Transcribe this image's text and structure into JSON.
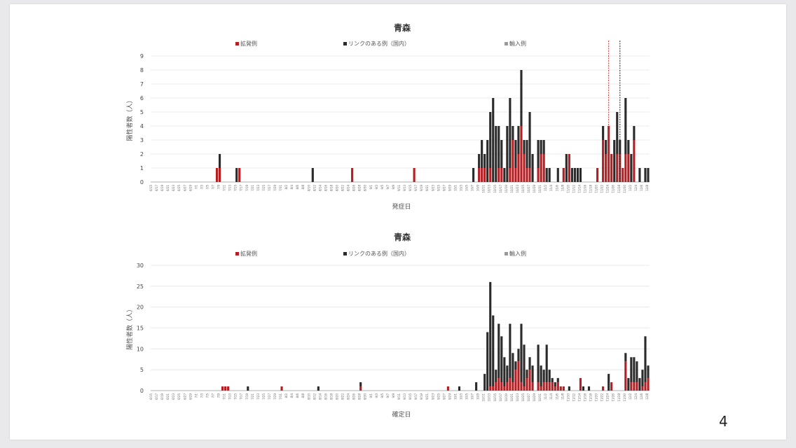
{
  "page_number": "4",
  "colors": {
    "cluster": "#b51e23",
    "linked": "#2b2b2b",
    "imported": "#9a9a9a",
    "grid": "#e4e4e4",
    "axis": "#999999"
  },
  "chart_data": [
    {
      "type": "bar",
      "stacked": true,
      "title": "青森",
      "xlabel": "発症日",
      "ylabel": "陽性者数（人）",
      "ylim": [
        0,
        9
      ],
      "yticks": [
        0,
        1,
        2,
        3,
        4,
        5,
        6,
        7,
        8,
        9
      ],
      "grid": true,
      "legend_position": "top",
      "x_start": "6/15",
      "x_end": "12/8",
      "legend": [
        "拡発例",
        "リンクのある例（国内）",
        "輸入例"
      ],
      "series": [
        {
          "name": "拡発例",
          "values": [
            {
              "x": "7/8",
              "y": 1
            },
            {
              "x": "7/9",
              "y": 1
            },
            {
              "x": "7/16",
              "y": 1
            },
            {
              "x": "8/25",
              "y": 1
            },
            {
              "x": "9/16",
              "y": 1
            },
            {
              "x": "10/9",
              "y": 1
            },
            {
              "x": "10/10",
              "y": 1
            },
            {
              "x": "10/11",
              "y": 1
            },
            {
              "x": "10/13",
              "y": 1
            },
            {
              "x": "10/16",
              "y": 1
            },
            {
              "x": "10/17",
              "y": 1
            },
            {
              "x": "10/20",
              "y": 1
            },
            {
              "x": "10/21",
              "y": 3
            },
            {
              "x": "10/22",
              "y": 1
            },
            {
              "x": "10/23",
              "y": 2
            },
            {
              "x": "10/24",
              "y": 4
            },
            {
              "x": "10/25",
              "y": 2
            },
            {
              "x": "10/26",
              "y": 1
            },
            {
              "x": "10/27",
              "y": 1
            },
            {
              "x": "10/30",
              "y": 1
            },
            {
              "x": "10/31",
              "y": 2
            },
            {
              "x": "11/1",
              "y": 2
            },
            {
              "x": "11/8",
              "y": 1
            },
            {
              "x": "11/10",
              "y": 2
            },
            {
              "x": "11/20",
              "y": 1
            },
            {
              "x": "11/22",
              "y": 3
            },
            {
              "x": "11/23",
              "y": 2
            },
            {
              "x": "11/24",
              "y": 4
            },
            {
              "x": "11/25",
              "y": 2
            },
            {
              "x": "11/27",
              "y": 2
            },
            {
              "x": "11/28",
              "y": 2
            },
            {
              "x": "11/29",
              "y": 1
            },
            {
              "x": "11/30",
              "y": 2
            },
            {
              "x": "12/1",
              "y": 2
            },
            {
              "x": "12/3",
              "y": 3
            }
          ]
        },
        {
          "name": "リンクのある例（国内）",
          "values": [
            {
              "x": "7/9",
              "y": 1
            },
            {
              "x": "7/15",
              "y": 1
            },
            {
              "x": "8/11",
              "y": 1
            },
            {
              "x": "10/7",
              "y": 1
            },
            {
              "x": "10/9",
              "y": 1
            },
            {
              "x": "10/10",
              "y": 2
            },
            {
              "x": "10/11",
              "y": 1
            },
            {
              "x": "10/12",
              "y": 3
            },
            {
              "x": "10/13",
              "y": 4
            },
            {
              "x": "10/14",
              "y": 6
            },
            {
              "x": "10/15",
              "y": 4
            },
            {
              "x": "10/16",
              "y": 3
            },
            {
              "x": "10/17",
              "y": 2
            },
            {
              "x": "10/18",
              "y": 1
            },
            {
              "x": "10/19",
              "y": 4
            },
            {
              "x": "10/20",
              "y": 5
            },
            {
              "x": "10/21",
              "y": 1
            },
            {
              "x": "10/22",
              "y": 2
            },
            {
              "x": "10/23",
              "y": 2
            },
            {
              "x": "10/24",
              "y": 4
            },
            {
              "x": "10/25",
              "y": 1
            },
            {
              "x": "10/26",
              "y": 2
            },
            {
              "x": "10/27",
              "y": 4
            },
            {
              "x": "10/28",
              "y": 2
            },
            {
              "x": "10/30",
              "y": 2
            },
            {
              "x": "10/31",
              "y": 1
            },
            {
              "x": "11/1",
              "y": 1
            },
            {
              "x": "11/2",
              "y": 1
            },
            {
              "x": "11/3",
              "y": 1
            },
            {
              "x": "11/6",
              "y": 1
            },
            {
              "x": "11/9",
              "y": 2
            },
            {
              "x": "11/11",
              "y": 1
            },
            {
              "x": "11/12",
              "y": 1
            },
            {
              "x": "11/13",
              "y": 1
            },
            {
              "x": "11/14",
              "y": 1
            },
            {
              "x": "11/22",
              "y": 1
            },
            {
              "x": "11/23",
              "y": 1
            },
            {
              "x": "11/26",
              "y": 3
            },
            {
              "x": "11/27",
              "y": 3
            },
            {
              "x": "11/28",
              "y": 1
            },
            {
              "x": "11/30",
              "y": 4
            },
            {
              "x": "12/1",
              "y": 1
            },
            {
              "x": "12/2",
              "y": 2
            },
            {
              "x": "12/3",
              "y": 1
            },
            {
              "x": "12/5",
              "y": 1
            },
            {
              "x": "12/7",
              "y": 1
            },
            {
              "x": "12/8",
              "y": 1
            }
          ]
        },
        {
          "name": "輸入例",
          "values": []
        }
      ],
      "annotations": [
        {
          "x": "11/24",
          "style": "dashed",
          "color": "#d03030"
        },
        {
          "x": "11/28",
          "style": "dashed",
          "color": "#222222"
        }
      ]
    },
    {
      "type": "bar",
      "stacked": true,
      "title": "青森",
      "xlabel": "確定日",
      "ylabel": "陽性者数（人）",
      "ylim": [
        0,
        30
      ],
      "yticks": [
        0,
        5,
        10,
        15,
        20,
        25,
        30
      ],
      "grid": true,
      "legend_position": "top",
      "x_start": "6/15",
      "x_end": "12/8",
      "legend": [
        "拡発例",
        "リンクのある例（国内）",
        "輸入例"
      ],
      "series": [
        {
          "name": "拡発例",
          "values": [
            {
              "x": "7/10",
              "y": 1
            },
            {
              "x": "7/11",
              "y": 1
            },
            {
              "x": "7/12",
              "y": 1
            },
            {
              "x": "7/31",
              "y": 1
            },
            {
              "x": "8/28",
              "y": 1
            },
            {
              "x": "9/28",
              "y": 1
            },
            {
              "x": "10/13",
              "y": 1
            },
            {
              "x": "10/14",
              "y": 1
            },
            {
              "x": "10/15",
              "y": 2
            },
            {
              "x": "10/16",
              "y": 3
            },
            {
              "x": "10/17",
              "y": 2
            },
            {
              "x": "10/18",
              "y": 1
            },
            {
              "x": "10/19",
              "y": 2
            },
            {
              "x": "10/20",
              "y": 3
            },
            {
              "x": "10/21",
              "y": 2
            },
            {
              "x": "10/22",
              "y": 5
            },
            {
              "x": "10/23",
              "y": 7
            },
            {
              "x": "10/24",
              "y": 2
            },
            {
              "x": "10/25",
              "y": 1
            },
            {
              "x": "10/26",
              "y": 3
            },
            {
              "x": "10/27",
              "y": 5
            },
            {
              "x": "10/28",
              "y": 2
            },
            {
              "x": "10/30",
              "y": 2
            },
            {
              "x": "10/31",
              "y": 1
            },
            {
              "x": "11/1",
              "y": 2
            },
            {
              "x": "11/2",
              "y": 2
            },
            {
              "x": "11/3",
              "y": 2
            },
            {
              "x": "11/4",
              "y": 2
            },
            {
              "x": "11/5",
              "y": 1
            },
            {
              "x": "11/6",
              "y": 2
            },
            {
              "x": "11/7",
              "y": 1
            },
            {
              "x": "11/8",
              "y": 1
            },
            {
              "x": "11/14",
              "y": 3
            },
            {
              "x": "11/22",
              "y": 1
            },
            {
              "x": "11/25",
              "y": 2
            },
            {
              "x": "11/30",
              "y": 7
            },
            {
              "x": "12/2",
              "y": 2
            },
            {
              "x": "12/3",
              "y": 2
            },
            {
              "x": "12/4",
              "y": 2
            },
            {
              "x": "12/6",
              "y": 1
            },
            {
              "x": "12/7",
              "y": 2
            },
            {
              "x": "12/8",
              "y": 3
            }
          ]
        },
        {
          "name": "リンクのある例（国内）",
          "values": [
            {
              "x": "7/10",
              "y": 0
            },
            {
              "x": "7/12",
              "y": 0
            },
            {
              "x": "7/19",
              "y": 1
            },
            {
              "x": "8/13",
              "y": 1
            },
            {
              "x": "8/28",
              "y": 1
            },
            {
              "x": "10/2",
              "y": 1
            },
            {
              "x": "10/8",
              "y": 2
            },
            {
              "x": "10/11",
              "y": 4
            },
            {
              "x": "10/12",
              "y": 14
            },
            {
              "x": "10/13",
              "y": 25
            },
            {
              "x": "10/14",
              "y": 17
            },
            {
              "x": "10/15",
              "y": 3
            },
            {
              "x": "10/16",
              "y": 13
            },
            {
              "x": "10/17",
              "y": 11
            },
            {
              "x": "10/18",
              "y": 7
            },
            {
              "x": "10/19",
              "y": 4
            },
            {
              "x": "10/20",
              "y": 13
            },
            {
              "x": "10/21",
              "y": 7
            },
            {
              "x": "10/22",
              "y": 2
            },
            {
              "x": "10/23",
              "y": 3
            },
            {
              "x": "10/24",
              "y": 14
            },
            {
              "x": "10/25",
              "y": 10
            },
            {
              "x": "10/26",
              "y": 2
            },
            {
              "x": "10/27",
              "y": 3
            },
            {
              "x": "10/28",
              "y": 4
            },
            {
              "x": "10/30",
              "y": 9
            },
            {
              "x": "10/31",
              "y": 5
            },
            {
              "x": "11/1",
              "y": 3
            },
            {
              "x": "11/2",
              "y": 9
            },
            {
              "x": "11/3",
              "y": 3
            },
            {
              "x": "11/4",
              "y": 1
            },
            {
              "x": "11/5",
              "y": 1
            },
            {
              "x": "11/6",
              "y": 1
            },
            {
              "x": "11/10",
              "y": 1
            },
            {
              "x": "11/15",
              "y": 1
            },
            {
              "x": "11/17",
              "y": 1
            },
            {
              "x": "11/24",
              "y": 4
            },
            {
              "x": "11/30",
              "y": 2
            },
            {
              "x": "12/1",
              "y": 3
            },
            {
              "x": "12/2",
              "y": 6
            },
            {
              "x": "12/3",
              "y": 6
            },
            {
              "x": "12/4",
              "y": 5
            },
            {
              "x": "12/5",
              "y": 3
            },
            {
              "x": "12/6",
              "y": 4
            },
            {
              "x": "12/7",
              "y": 11
            },
            {
              "x": "12/8",
              "y": 3
            }
          ]
        },
        {
          "name": "輸入例",
          "values": []
        }
      ]
    }
  ]
}
